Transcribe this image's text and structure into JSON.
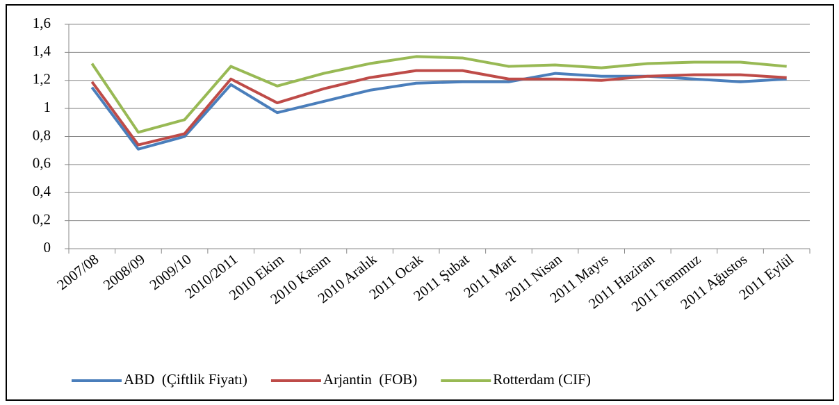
{
  "chart_data": {
    "type": "line",
    "categories": [
      "2007/08",
      "2008/09",
      "2009/10",
      "2010/2011",
      "2010 Ekim",
      "2010 Kasım",
      "2010 Aralık",
      "2011 Ocak",
      "2011 Şubat",
      "2011 Mart",
      "2011 Nisan",
      "2011 Mayıs",
      "2011 Haziran",
      "2011 Temmuz",
      "2011 Ağustos",
      "2011 Eylül"
    ],
    "series": [
      {
        "name": "ABD  (Çiftlik Fiyatı)",
        "color": "#4a7ebb",
        "values": [
          1.15,
          0.71,
          0.8,
          1.17,
          0.97,
          1.05,
          1.13,
          1.18,
          1.19,
          1.19,
          1.25,
          1.23,
          1.23,
          1.21,
          1.19,
          1.21
        ]
      },
      {
        "name": "Arjantin  (FOB)",
        "color": "#be4b48",
        "values": [
          1.19,
          0.74,
          0.82,
          1.21,
          1.04,
          1.14,
          1.22,
          1.27,
          1.27,
          1.21,
          1.21,
          1.2,
          1.23,
          1.24,
          1.24,
          1.22
        ]
      },
      {
        "name": "Rotterdam (CIF)",
        "color": "#98b954",
        "values": [
          1.32,
          0.83,
          0.92,
          1.3,
          1.16,
          1.25,
          1.32,
          1.37,
          1.36,
          1.3,
          1.31,
          1.29,
          1.32,
          1.33,
          1.33,
          1.3
        ]
      }
    ],
    "ylim": [
      0,
      1.6
    ],
    "yticks": [
      0,
      {
        "value": 0.2,
        "label": "0,2"
      },
      {
        "value": 0.4,
        "label": "0,4"
      },
      {
        "value": 0.6,
        "label": "0,6"
      },
      {
        "value": 0.8,
        "label": "0,8"
      },
      1,
      {
        "value": 1.2,
        "label": "1,2"
      },
      {
        "value": 1.4,
        "label": "1,4"
      },
      {
        "value": 1.6,
        "label": "1,6"
      }
    ],
    "grid": true,
    "legend": "bottom"
  }
}
